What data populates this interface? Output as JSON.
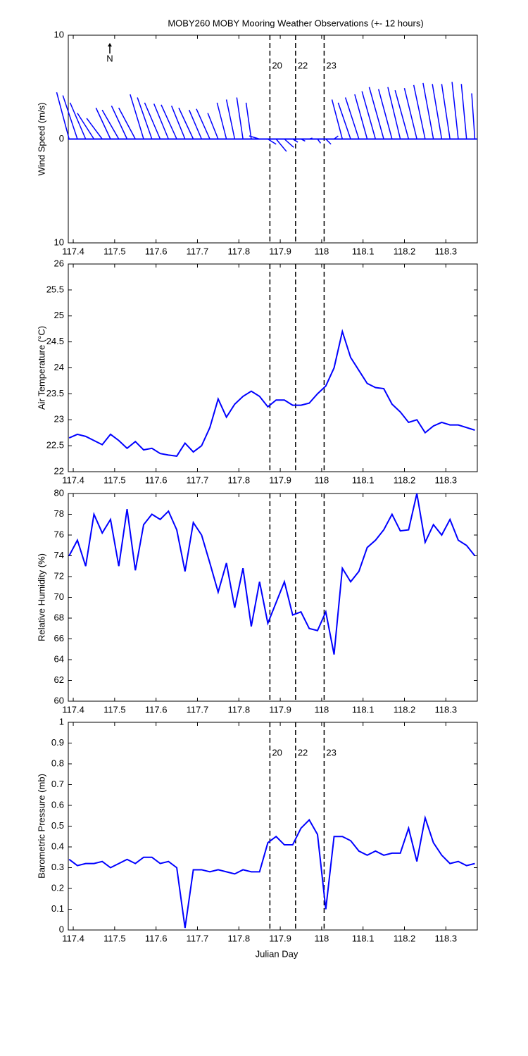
{
  "title": "MOBY260 MOBY Mooring Weather Observations (+- 12 hours)",
  "xlabel": "Julian Day",
  "chart_data": [
    {
      "type": "stick",
      "ylabel": "Wind Speed (m/s)",
      "north_label": "N",
      "color": "#0000ff",
      "x": [
        117.39,
        117.41,
        117.43,
        117.45,
        117.47,
        117.49,
        117.51,
        117.53,
        117.55,
        117.57,
        117.59,
        117.61,
        117.63,
        117.65,
        117.67,
        117.69,
        117.71,
        117.73,
        117.75,
        117.77,
        117.79,
        117.81,
        117.83,
        117.85,
        117.87,
        117.89,
        117.91,
        117.93,
        117.95,
        117.97,
        117.99,
        118.01,
        118.03,
        118.05,
        118.07,
        118.09,
        118.11,
        118.13,
        118.15,
        118.17,
        118.19,
        118.21,
        118.23,
        118.25,
        118.27,
        118.29,
        118.31,
        118.33,
        118.35,
        118.37
      ],
      "u": [
        -1.2,
        -1.4,
        -1.5,
        -1.6,
        -1.5,
        -1.4,
        -1.6,
        -1.5,
        -1.6,
        -1.3,
        -1.4,
        -1.5,
        -1.4,
        -1.5,
        -1.3,
        -1.4,
        -1.2,
        -1.3,
        -1.0,
        -0.9,
        -0.8,
        -0.6,
        -0.5,
        -1.0,
        0.8,
        1.0,
        0.9,
        0.5,
        0.4,
        0.3,
        0.3,
        0.5,
        0.4,
        -1.0,
        -1.2,
        -1.3,
        -1.2,
        -1.3,
        -1.4,
        -1.3,
        -1.2,
        -1.3,
        -1.2,
        -1.1,
        -1.0,
        -0.9,
        -0.8,
        -0.6,
        -0.5,
        -0.3
      ],
      "v": [
        4.5,
        4.2,
        3.5,
        2.5,
        2.0,
        3.0,
        2.8,
        3.2,
        3.0,
        4.3,
        4.0,
        3.5,
        3.4,
        3.3,
        3.2,
        3.0,
        2.8,
        2.9,
        2.5,
        3.5,
        3.8,
        4.0,
        3.5,
        0.3,
        -0.5,
        -1.2,
        -0.8,
        -0.3,
        -0.2,
        0.1,
        -0.4,
        -0.5,
        0.3,
        3.8,
        3.5,
        4.0,
        4.3,
        4.6,
        5.0,
        4.8,
        5.0,
        4.7,
        4.9,
        5.2,
        5.4,
        5.3,
        5.3,
        5.5,
        5.3,
        4.4
      ],
      "xlim": [
        117.388,
        118.376
      ],
      "xticks": [
        117.4,
        117.5,
        117.6,
        117.7,
        117.8,
        117.9,
        118,
        118.1,
        118.2,
        118.3
      ],
      "ylim": [
        -10,
        10
      ],
      "yticks": [
        {
          "value": -10,
          "label": "10"
        },
        0,
        10
      ],
      "vlines": [
        117.875,
        117.937,
        118.006
      ],
      "vline_labels": [
        "20",
        "22",
        "23"
      ],
      "vline_label_color": "#cc2222"
    },
    {
      "type": "line",
      "ylabel": "Air Temperature (°C)",
      "color": "#0000ff",
      "x": [
        117.39,
        117.41,
        117.43,
        117.45,
        117.47,
        117.49,
        117.51,
        117.53,
        117.55,
        117.57,
        117.59,
        117.61,
        117.63,
        117.65,
        117.67,
        117.69,
        117.71,
        117.73,
        117.75,
        117.77,
        117.79,
        117.81,
        117.83,
        117.85,
        117.87,
        117.89,
        117.91,
        117.93,
        117.95,
        117.97,
        117.99,
        118.01,
        118.03,
        118.05,
        118.07,
        118.09,
        118.11,
        118.13,
        118.15,
        118.17,
        118.19,
        118.21,
        118.23,
        118.25,
        118.27,
        118.29,
        118.31,
        118.33,
        118.35,
        118.37
      ],
      "values": [
        22.65,
        22.72,
        22.68,
        22.6,
        22.52,
        22.72,
        22.6,
        22.45,
        22.58,
        22.42,
        22.45,
        22.35,
        22.32,
        22.3,
        22.55,
        22.38,
        22.5,
        22.85,
        23.4,
        23.05,
        23.3,
        23.45,
        23.55,
        23.45,
        23.25,
        23.38,
        23.38,
        23.28,
        23.28,
        23.32,
        23.5,
        23.65,
        24.0,
        24.7,
        24.2,
        23.95,
        23.7,
        23.62,
        23.6,
        23.3,
        23.15,
        22.95,
        23.0,
        22.75,
        22.88,
        22.95,
        22.9,
        22.9,
        22.85,
        22.8
      ],
      "xlim": [
        117.388,
        118.376
      ],
      "xticks": [
        117.4,
        117.5,
        117.6,
        117.7,
        117.8,
        117.9,
        118,
        118.1,
        118.2,
        118.3
      ],
      "ylim": [
        22,
        26
      ],
      "yticks": [
        22,
        22.5,
        23,
        23.5,
        24,
        24.5,
        25,
        25.5,
        26
      ],
      "vlines": [
        117.875,
        117.937,
        118.006
      ]
    },
    {
      "type": "line",
      "ylabel": "Relative Humidity (%)",
      "color": "#0000ff",
      "x": [
        117.39,
        117.41,
        117.43,
        117.45,
        117.47,
        117.49,
        117.51,
        117.53,
        117.55,
        117.57,
        117.59,
        117.61,
        117.63,
        117.65,
        117.67,
        117.69,
        117.71,
        117.73,
        117.75,
        117.77,
        117.79,
        117.81,
        117.83,
        117.85,
        117.87,
        117.89,
        117.91,
        117.93,
        117.95,
        117.97,
        117.99,
        118.01,
        118.03,
        118.05,
        118.07,
        118.09,
        118.11,
        118.13,
        118.15,
        118.17,
        118.19,
        118.21,
        118.23,
        118.25,
        118.27,
        118.29,
        118.31,
        118.33,
        118.35,
        118.37
      ],
      "values": [
        74,
        75.5,
        73,
        78,
        76.2,
        77.5,
        73,
        78.5,
        72.6,
        77,
        78,
        77.5,
        78.3,
        76.5,
        72.5,
        77.2,
        76,
        73.3,
        70.5,
        73.3,
        69,
        72.8,
        67.2,
        71.5,
        67.5,
        69.5,
        71.5,
        68.3,
        68.6,
        67,
        66.8,
        68.6,
        64.5,
        72.8,
        71.5,
        72.5,
        74.8,
        75.5,
        76.5,
        78,
        76.4,
        76.5,
        80,
        75.3,
        77,
        76,
        77.5,
        75.5,
        75,
        74
      ],
      "xlim": [
        117.388,
        118.376
      ],
      "xticks": [
        117.4,
        117.5,
        117.6,
        117.7,
        117.8,
        117.9,
        118,
        118.1,
        118.2,
        118.3
      ],
      "ylim": [
        60,
        80
      ],
      "yticks": [
        60,
        62,
        64,
        66,
        68,
        70,
        72,
        74,
        76,
        78,
        80
      ],
      "vlines": [
        117.875,
        117.937,
        118.006
      ]
    },
    {
      "type": "line",
      "ylabel": "Barometric Pressure (mb)",
      "color": "#0000ff",
      "x": [
        117.39,
        117.41,
        117.43,
        117.45,
        117.47,
        117.49,
        117.51,
        117.53,
        117.55,
        117.57,
        117.59,
        117.61,
        117.63,
        117.65,
        117.67,
        117.69,
        117.71,
        117.73,
        117.75,
        117.77,
        117.79,
        117.81,
        117.83,
        117.85,
        117.87,
        117.89,
        117.91,
        117.93,
        117.95,
        117.97,
        117.99,
        118.01,
        118.03,
        118.05,
        118.07,
        118.09,
        118.11,
        118.13,
        118.15,
        118.17,
        118.19,
        118.21,
        118.23,
        118.25,
        118.27,
        118.29,
        118.31,
        118.33,
        118.35,
        118.37
      ],
      "values": [
        0.34,
        0.31,
        0.32,
        0.32,
        0.33,
        0.3,
        0.32,
        0.34,
        0.32,
        0.35,
        0.35,
        0.32,
        0.33,
        0.3,
        0.01,
        0.29,
        0.29,
        0.28,
        0.29,
        0.28,
        0.27,
        0.29,
        0.28,
        0.28,
        0.42,
        0.45,
        0.41,
        0.41,
        0.49,
        0.53,
        0.46,
        0.1,
        0.45,
        0.45,
        0.43,
        0.38,
        0.36,
        0.38,
        0.36,
        0.37,
        0.37,
        0.49,
        0.33,
        0.54,
        0.42,
        0.36,
        0.32,
        0.33,
        0.31,
        0.32
      ],
      "xlim": [
        117.388,
        118.376
      ],
      "xticks": [
        117.4,
        117.5,
        117.6,
        117.7,
        117.8,
        117.9,
        118,
        118.1,
        118.2,
        118.3
      ],
      "ylim": [
        0,
        1
      ],
      "yticks": [
        0,
        0.1,
        0.2,
        0.3,
        0.4,
        0.5,
        0.6,
        0.7,
        0.8,
        0.9,
        1
      ],
      "vlines": [
        117.875,
        117.937,
        118.006
      ],
      "vline_labels": [
        "20",
        "22",
        "23"
      ],
      "vline_label_color": "#cc2222"
    }
  ]
}
